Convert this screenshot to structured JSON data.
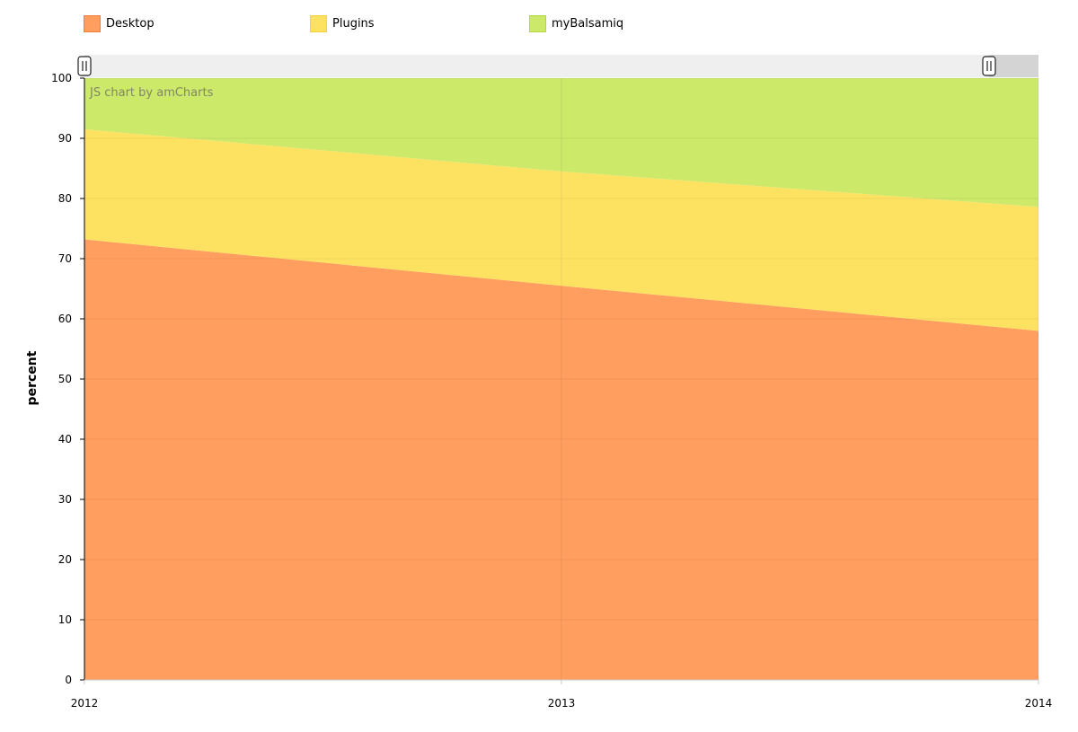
{
  "chart_data": {
    "type": "area",
    "stacked": true,
    "x": [
      "2012",
      "2013",
      "2014"
    ],
    "series": [
      {
        "name": "Desktop",
        "values": [
          73.2,
          65.5,
          58.0
        ],
        "color": "#ff9e5e"
      },
      {
        "name": "Plugins",
        "values": [
          18.3,
          19.0,
          20.6
        ],
        "color": "#fde262"
      },
      {
        "name": "myBalsamiq",
        "values": [
          8.5,
          15.5,
          21.4
        ],
        "color": "#cde96a"
      }
    ],
    "ylabel": "percent",
    "xlabel": "",
    "ylim": [
      0,
      100
    ],
    "yticks": [
      "0",
      "10",
      "20",
      "30",
      "40",
      "50",
      "60",
      "70",
      "80",
      "90",
      "100"
    ],
    "grid": true,
    "legend_position": "top",
    "scrollbar": true,
    "credit": "JS chart by amCharts"
  },
  "legend": {
    "items": [
      {
        "label": "Desktop",
        "fill": "#ff9e5e",
        "border": "#f47d3a"
      },
      {
        "label": "Plugins",
        "fill": "#fde262",
        "border": "#f3d23c"
      },
      {
        "label": "myBalsamiq",
        "fill": "#cde96a",
        "border": "#b2d83c"
      }
    ]
  }
}
